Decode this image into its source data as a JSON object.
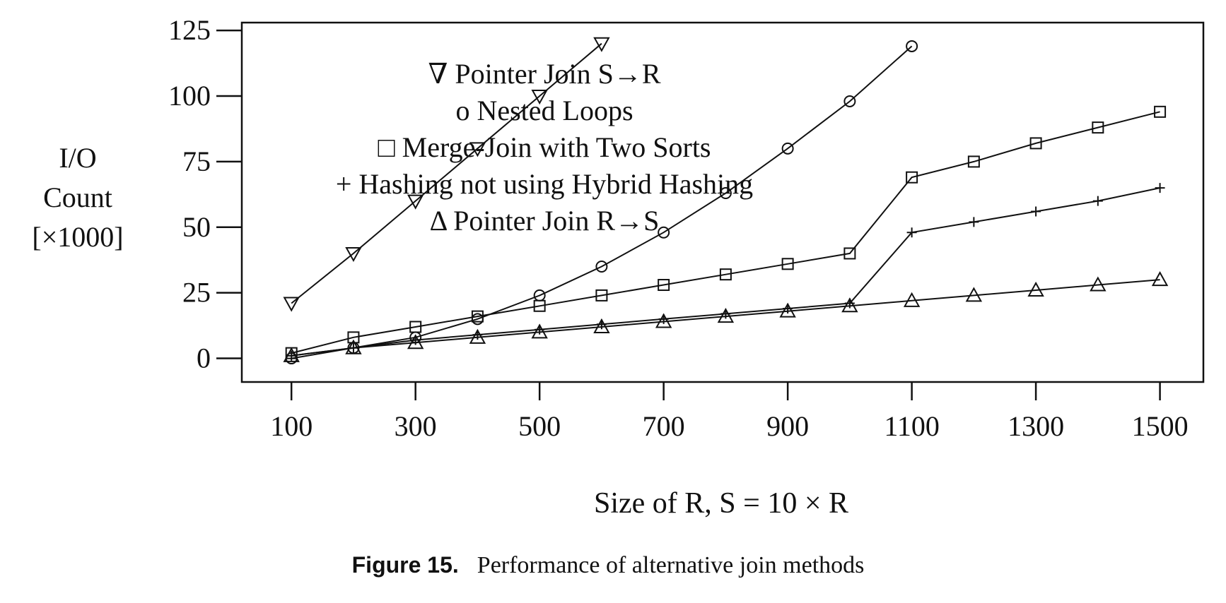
{
  "chart_data": {
    "type": "line",
    "xlabel": "Size of R, S = 10 × R",
    "ylabel": [
      "I/O",
      "Count",
      "[×1000]"
    ],
    "xlim": [
      20,
      1570
    ],
    "ylim": [
      -9,
      128
    ],
    "xticks": [
      100,
      300,
      500,
      700,
      900,
      1100,
      1300,
      1500
    ],
    "yticks": [
      0,
      25,
      50,
      75,
      100,
      125
    ],
    "grid": false,
    "legend_position": "top-center",
    "series": [
      {
        "name": "Pointer Join S→R",
        "marker": "triangle-down",
        "legend_symbol": "∇",
        "x": [
          100,
          200,
          300,
          400,
          500,
          600
        ],
        "y": [
          21,
          40,
          60,
          80,
          100,
          120
        ]
      },
      {
        "name": "Nested Loops",
        "marker": "circle",
        "legend_symbol": "o",
        "x": [
          100,
          200,
          300,
          400,
          500,
          600,
          700,
          800,
          900,
          1000,
          1100
        ],
        "y": [
          0,
          4,
          8,
          15,
          24,
          35,
          48,
          63,
          80,
          98,
          119
        ]
      },
      {
        "name": "Merge-Join with Two Sorts",
        "marker": "square",
        "legend_symbol": "□",
        "x": [
          100,
          200,
          300,
          400,
          500,
          600,
          700,
          800,
          900,
          1000,
          1100,
          1200,
          1300,
          1400,
          1500
        ],
        "y": [
          2,
          8,
          12,
          16,
          20,
          24,
          28,
          32,
          36,
          40,
          69,
          75,
          82,
          88,
          94
        ]
      },
      {
        "name": "Hashing not using Hybrid Hashing",
        "marker": "plus",
        "legend_symbol": "+",
        "x": [
          100,
          200,
          300,
          400,
          500,
          600,
          700,
          800,
          900,
          1000,
          1100,
          1200,
          1300,
          1400,
          1500
        ],
        "y": [
          1,
          4,
          7,
          9,
          11,
          13,
          15,
          17,
          19,
          21,
          48,
          52,
          56,
          60,
          65
        ]
      },
      {
        "name": "Pointer Join R→S",
        "marker": "triangle-up",
        "legend_symbol": "Δ",
        "x": [
          100,
          200,
          300,
          400,
          500,
          600,
          700,
          800,
          900,
          1000,
          1100,
          1200,
          1300,
          1400,
          1500
        ],
        "y": [
          1,
          4,
          6,
          8,
          10,
          12,
          14,
          16,
          18,
          20,
          22,
          24,
          26,
          28,
          30
        ]
      }
    ]
  },
  "caption": {
    "label": "Figure 15.",
    "text": "Performance of alternative join methods"
  }
}
